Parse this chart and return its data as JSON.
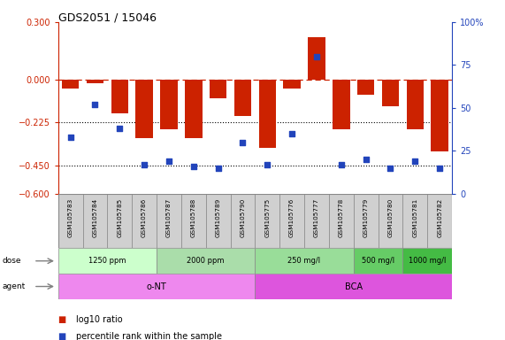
{
  "title": "GDS2051 / 15046",
  "samples": [
    "GSM105783",
    "GSM105784",
    "GSM105785",
    "GSM105786",
    "GSM105787",
    "GSM105788",
    "GSM105789",
    "GSM105790",
    "GSM105775",
    "GSM105776",
    "GSM105777",
    "GSM105778",
    "GSM105779",
    "GSM105780",
    "GSM105781",
    "GSM105782"
  ],
  "log10_ratio": [
    -0.05,
    -0.02,
    -0.18,
    -0.31,
    -0.26,
    -0.31,
    -0.1,
    -0.19,
    -0.36,
    -0.05,
    0.22,
    -0.26,
    -0.08,
    -0.14,
    -0.26,
    -0.38
  ],
  "percentile_rank": [
    33,
    52,
    38,
    17,
    19,
    16,
    15,
    30,
    17,
    35,
    80,
    17,
    20,
    15,
    19,
    15
  ],
  "ylim_left": [
    -0.6,
    0.3
  ],
  "ylim_right": [
    0,
    100
  ],
  "yticks_left": [
    0.3,
    0.0,
    -0.225,
    -0.45,
    -0.6
  ],
  "yticks_right": [
    100,
    75,
    50,
    25,
    0
  ],
  "hline_dashed": 0.0,
  "hline_dot1": -0.225,
  "hline_dot2": -0.45,
  "bar_color": "#cc2200",
  "dot_color": "#2244bb",
  "dose_groups": [
    {
      "label": "1250 ppm",
      "start": 0,
      "end": 4,
      "color": "#ccffcc"
    },
    {
      "label": "2000 ppm",
      "start": 4,
      "end": 8,
      "color": "#aaddaa"
    },
    {
      "label": "250 mg/l",
      "start": 8,
      "end": 12,
      "color": "#99dd99"
    },
    {
      "label": "500 mg/l",
      "start": 12,
      "end": 14,
      "color": "#66cc66"
    },
    {
      "label": "1000 mg/l",
      "start": 14,
      "end": 16,
      "color": "#44bb44"
    }
  ],
  "agent_groups": [
    {
      "label": "o-NT",
      "start": 0,
      "end": 8,
      "color": "#ee88ee"
    },
    {
      "label": "BCA",
      "start": 8,
      "end": 16,
      "color": "#dd55dd"
    }
  ],
  "legend_items": [
    {
      "label": "log10 ratio",
      "color": "#cc2200"
    },
    {
      "label": "percentile rank within the sample",
      "color": "#2244bb"
    }
  ],
  "bar_width": 0.7
}
